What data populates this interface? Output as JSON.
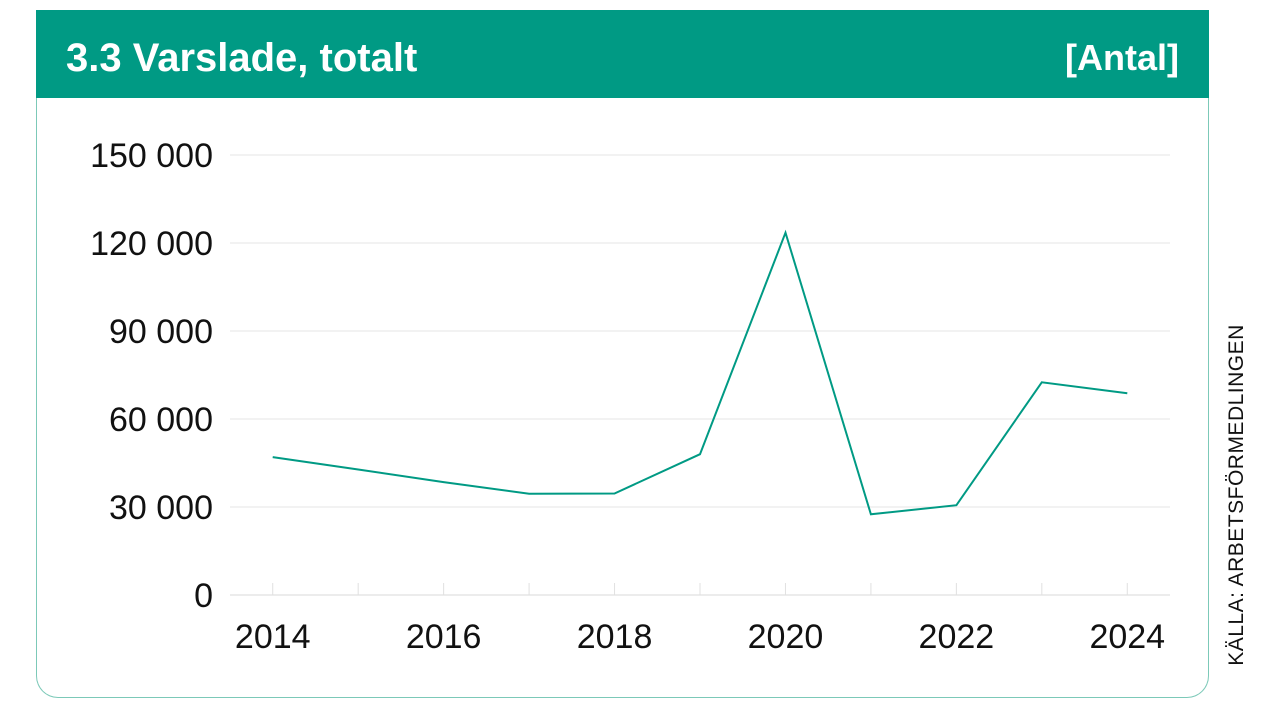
{
  "header": {
    "title": "3.3  Varslade, totalt",
    "unit": "[Antal]"
  },
  "source": "KÄLLA: ARBETSFÖRMEDLINGEN",
  "colors": {
    "accent": "#009a84",
    "line": "#009a84",
    "grid": "#e6e6e6",
    "card_border": "#7cc9b8"
  },
  "chart_data": {
    "type": "line",
    "title": "3.3  Varslade, totalt",
    "unit": "[Antal]",
    "xlabel": "",
    "ylabel": "",
    "x": [
      2014,
      2015,
      2016,
      2017,
      2018,
      2019,
      2020,
      2021,
      2022,
      2023,
      2024
    ],
    "series": [
      {
        "values": [
          47000,
          42800,
          38500,
          34500,
          34600,
          48000,
          123500,
          27500,
          30600,
          72500,
          68800
        ]
      }
    ],
    "xlim": [
      2013.5,
      2024.5
    ],
    "ylim": [
      0,
      150000
    ],
    "yticks": [
      0,
      30000,
      60000,
      90000,
      120000,
      150000
    ],
    "ytick_labels": [
      "0",
      "30 000",
      "60 000",
      "90 000",
      "120 000",
      "150 000"
    ],
    "xticks": [
      2014,
      2016,
      2018,
      2020,
      2022,
      2024
    ],
    "xtick_labels": [
      "2014",
      "2016",
      "2018",
      "2020",
      "2022",
      "2024"
    ],
    "grid": true,
    "legend": "none"
  }
}
